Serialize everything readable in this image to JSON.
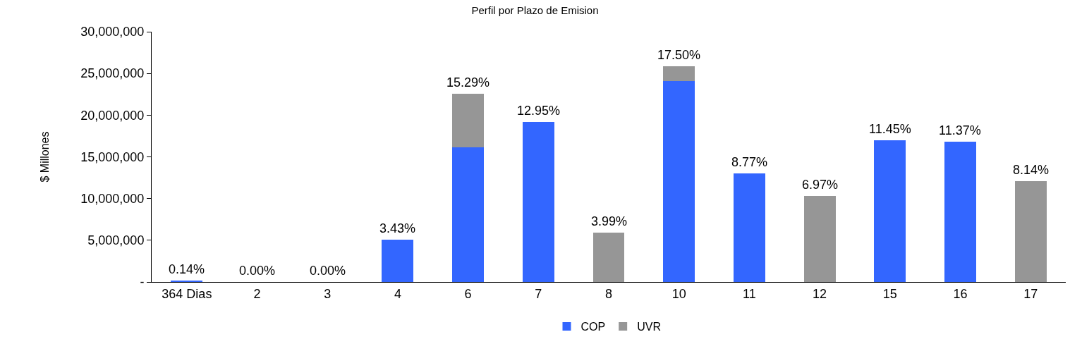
{
  "chart_data": {
    "type": "bar",
    "title": "Perfil por Plazo de Emision",
    "ylabel": "$ Millones",
    "categories": [
      "364 Dias",
      "2",
      "3",
      "4",
      "6",
      "7",
      "8",
      "10",
      "11",
      "12",
      "15",
      "16",
      "17"
    ],
    "stacked": true,
    "series": [
      {
        "name": "COP",
        "color": "#3366ff",
        "values": [
          200000,
          0,
          0,
          5100000,
          16100000,
          19200000,
          0,
          24100000,
          13000000,
          0,
          17000000,
          16800000,
          0
        ]
      },
      {
        "name": "UVR",
        "color": "#969696",
        "values": [
          0,
          0,
          0,
          0,
          6500000,
          0,
          5900000,
          1800000,
          0,
          10300000,
          0,
          0,
          12100000
        ]
      }
    ],
    "annotations": [
      {
        "text": "0.14%",
        "x": "364 Dias",
        "y": 200000
      },
      {
        "text": "0.00%",
        "x": "2",
        "y": 0
      },
      {
        "text": "0.00%",
        "x": "3",
        "y": 0
      },
      {
        "text": "3.43%",
        "x": "4",
        "y": 5100000
      },
      {
        "text": "15.29%",
        "x": "6",
        "y": 22600000
      },
      {
        "text": "12.95%",
        "x": "7",
        "y": 19200000
      },
      {
        "text": "3.99%",
        "x": "8",
        "y": 5900000
      },
      {
        "text": "17.50%",
        "x": "10",
        "y": 25900000
      },
      {
        "text": "8.77%",
        "x": "11",
        "y": 13000000
      },
      {
        "text": "6.97%",
        "x": "12",
        "y": 10300000
      },
      {
        "text": "11.45%",
        "x": "15",
        "y": 17000000
      },
      {
        "text": "11.37%",
        "x": "16",
        "y": 16800000
      },
      {
        "text": "8.14%",
        "x": "17",
        "y": 12100000
      }
    ],
    "ylim": [
      0,
      30000000
    ],
    "yticks": [
      {
        "value": 0,
        "label": "-"
      },
      {
        "value": 5000000,
        "label": "5,000,000"
      },
      {
        "value": 10000000,
        "label": "10,000,000"
      },
      {
        "value": 15000000,
        "label": "15,000,000"
      },
      {
        "value": 20000000,
        "label": "20,000,000"
      },
      {
        "value": 25000000,
        "label": "25,000,000"
      },
      {
        "value": 30000000,
        "label": "30,000,000"
      }
    ],
    "grid": false,
    "legend": "bottom"
  }
}
